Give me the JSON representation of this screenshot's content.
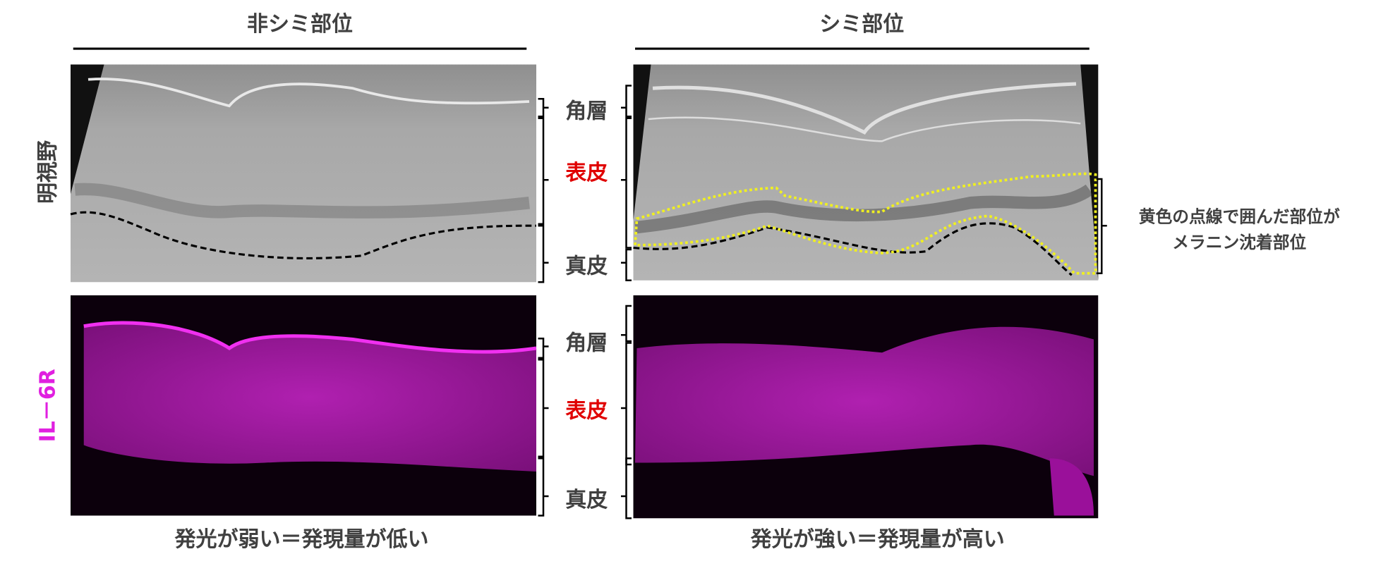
{
  "columns": [
    {
      "title": "非シミ部位",
      "caption": "発光が弱い＝発現量が低い"
    },
    {
      "title": "シミ部位",
      "caption": "発光が強い＝発現量が高い"
    }
  ],
  "rows": [
    "明視野",
    "IL－6R"
  ],
  "layer_labels": [
    [
      "角層",
      "表皮",
      "真皮"
    ],
    [
      "角層",
      "表皮",
      "真皮"
    ]
  ],
  "annotation": [
    "黄色の点線で囲んだ部位が",
    "メラニン沈着部位"
  ]
}
